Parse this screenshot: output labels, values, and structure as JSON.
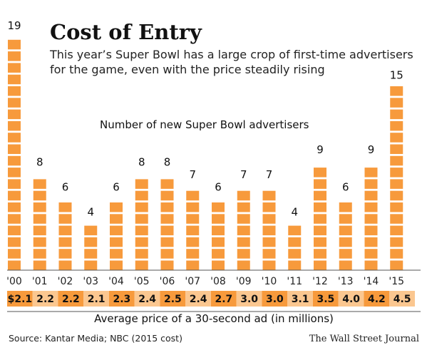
{
  "chart_data": {
    "type": "bar",
    "title": "Cost of Entry",
    "subtitle_lines": [
      "This year’s Super Bowl has a large crop of first-time advertisers",
      "for the game, even with the price steadily rising"
    ],
    "series_caption": "Number of new Super Bowl advertisers",
    "categories": [
      "'00",
      "'01",
      "'02",
      "'03",
      "'04",
      "'05",
      "'06",
      "'07",
      "'08",
      "'09",
      "'10",
      "'11",
      "'12",
      "'13",
      "'14",
      "'15"
    ],
    "values": [
      19,
      8,
      6,
      4,
      6,
      8,
      8,
      7,
      6,
      7,
      7,
      4,
      9,
      6,
      9,
      15
    ],
    "value_labels": [
      "19",
      "8",
      "6",
      "4",
      "6",
      "8",
      "8",
      "7",
      "6",
      "7",
      "7",
      "4",
      "9",
      "6",
      "9",
      "15"
    ],
    "prices": [
      "$2.1",
      "2.2",
      "2.2",
      "2.1",
      "2.3",
      "2.4",
      "2.5",
      "2.4",
      "2.7",
      "3.0",
      "3.0",
      "3.1",
      "3.5",
      "4.0",
      "4.2",
      "4.5"
    ],
    "price_values": [
      2.1,
      2.2,
      2.2,
      2.1,
      2.3,
      2.4,
      2.5,
      2.4,
      2.7,
      3.0,
      3.0,
      3.1,
      3.5,
      4.0,
      4.2,
      4.5
    ],
    "xlabel": "Average price of a 30-second ad (in millions)",
    "ylim": [
      0,
      19
    ],
    "grid": false,
    "legend": "none"
  },
  "footer": {
    "source": "Source: Kantar Media; NBC (2015 cost)",
    "credit": "The Wall Street Journal"
  },
  "colors": {
    "bar": "#f79a3c",
    "price_dark": "#f79a3c",
    "price_light": "#fbc790",
    "axis": "#555555"
  }
}
